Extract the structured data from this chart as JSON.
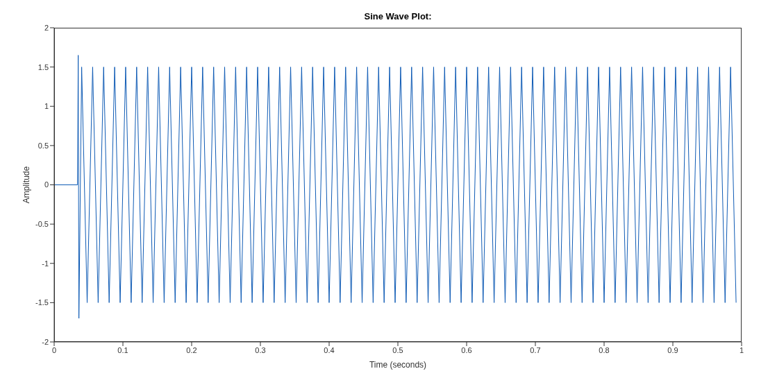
{
  "chart_data": {
    "type": "line",
    "title": "Sine Wave Plot:",
    "xlabel": "Time (seconds)",
    "ylabel": "Amplitude",
    "xlim": [
      0,
      1
    ],
    "xticks": [
      0,
      0.1,
      0.2,
      0.3,
      0.4,
      0.5,
      0.6,
      0.7,
      0.8,
      0.9,
      1
    ],
    "ylim": [
      -2,
      2
    ],
    "yticks": [
      -2,
      -1.5,
      -1,
      -0.5,
      0,
      0.5,
      1,
      1.5,
      2
    ],
    "series": [
      {
        "color": "#0f5bb5",
        "x": [
          0,
          0.034,
          0.035,
          0.036,
          0.04,
          0.048,
          0.056,
          0.064,
          0.072,
          0.08,
          0.088,
          0.096,
          0.104,
          0.112,
          0.12,
          0.128,
          0.136,
          0.144,
          0.152,
          0.16,
          0.168,
          0.176,
          0.184,
          0.192,
          0.2,
          0.208,
          0.216,
          0.224,
          0.232,
          0.24,
          0.248,
          0.256,
          0.264,
          0.272,
          0.28,
          0.288,
          0.296,
          0.304,
          0.312,
          0.32,
          0.328,
          0.336,
          0.344,
          0.352,
          0.36,
          0.368,
          0.376,
          0.384,
          0.392,
          0.4,
          0.408,
          0.416,
          0.424,
          0.432,
          0.44,
          0.448,
          0.456,
          0.464,
          0.472,
          0.48,
          0.488,
          0.496,
          0.504,
          0.512,
          0.52,
          0.528,
          0.536,
          0.544,
          0.552,
          0.56,
          0.568,
          0.576,
          0.584,
          0.592,
          0.6,
          0.608,
          0.616,
          0.624,
          0.632,
          0.64,
          0.648,
          0.656,
          0.664,
          0.672,
          0.68,
          0.688,
          0.696,
          0.704,
          0.712,
          0.72,
          0.728,
          0.736,
          0.744,
          0.752,
          0.76,
          0.768,
          0.776,
          0.784,
          0.792,
          0.8,
          0.808,
          0.816,
          0.824,
          0.832,
          0.84,
          0.848,
          0.856,
          0.864,
          0.872,
          0.88,
          0.888,
          0.896,
          0.904,
          0.912,
          0.92,
          0.928,
          0.936,
          0.944,
          0.952,
          0.96,
          0.968,
          0.976,
          0.984,
          0.992
        ],
        "values": [
          0,
          0,
          1.65,
          -1.7,
          1.5,
          -1.5,
          1.5,
          -1.5,
          1.5,
          -1.5,
          1.5,
          -1.5,
          1.5,
          -1.5,
          1.5,
          -1.5,
          1.5,
          -1.5,
          1.5,
          -1.5,
          1.5,
          -1.5,
          1.5,
          -1.5,
          1.5,
          -1.5,
          1.5,
          -1.5,
          1.5,
          -1.5,
          1.5,
          -1.5,
          1.5,
          -1.5,
          1.5,
          -1.5,
          1.5,
          -1.5,
          1.5,
          -1.5,
          1.5,
          -1.5,
          1.5,
          -1.5,
          1.5,
          -1.5,
          1.5,
          -1.5,
          1.5,
          -1.5,
          1.5,
          -1.5,
          1.5,
          -1.5,
          1.5,
          -1.5,
          1.5,
          -1.5,
          1.5,
          -1.5,
          1.5,
          -1.5,
          1.5,
          -1.5,
          1.5,
          -1.5,
          1.5,
          -1.5,
          1.5,
          -1.5,
          1.5,
          -1.5,
          1.5,
          -1.5,
          1.5,
          -1.5,
          1.5,
          -1.5,
          1.5,
          -1.5,
          1.5,
          -1.5,
          1.5,
          -1.5,
          1.5,
          -1.5,
          1.5,
          -1.5,
          1.5,
          -1.5,
          1.5,
          -1.5,
          1.5,
          -1.5,
          1.5,
          -1.5,
          1.5,
          -1.5,
          1.5,
          -1.5,
          1.5,
          -1.5,
          1.5,
          -1.5,
          1.5,
          -1.5,
          1.5,
          -1.5,
          1.5,
          -1.5,
          1.5,
          -1.5,
          1.5,
          -1.5,
          1.5,
          -1.5,
          1.5,
          -1.5,
          1.5,
          -1.5,
          1.5,
          -1.5,
          1.5,
          -1.5
        ]
      }
    ]
  }
}
